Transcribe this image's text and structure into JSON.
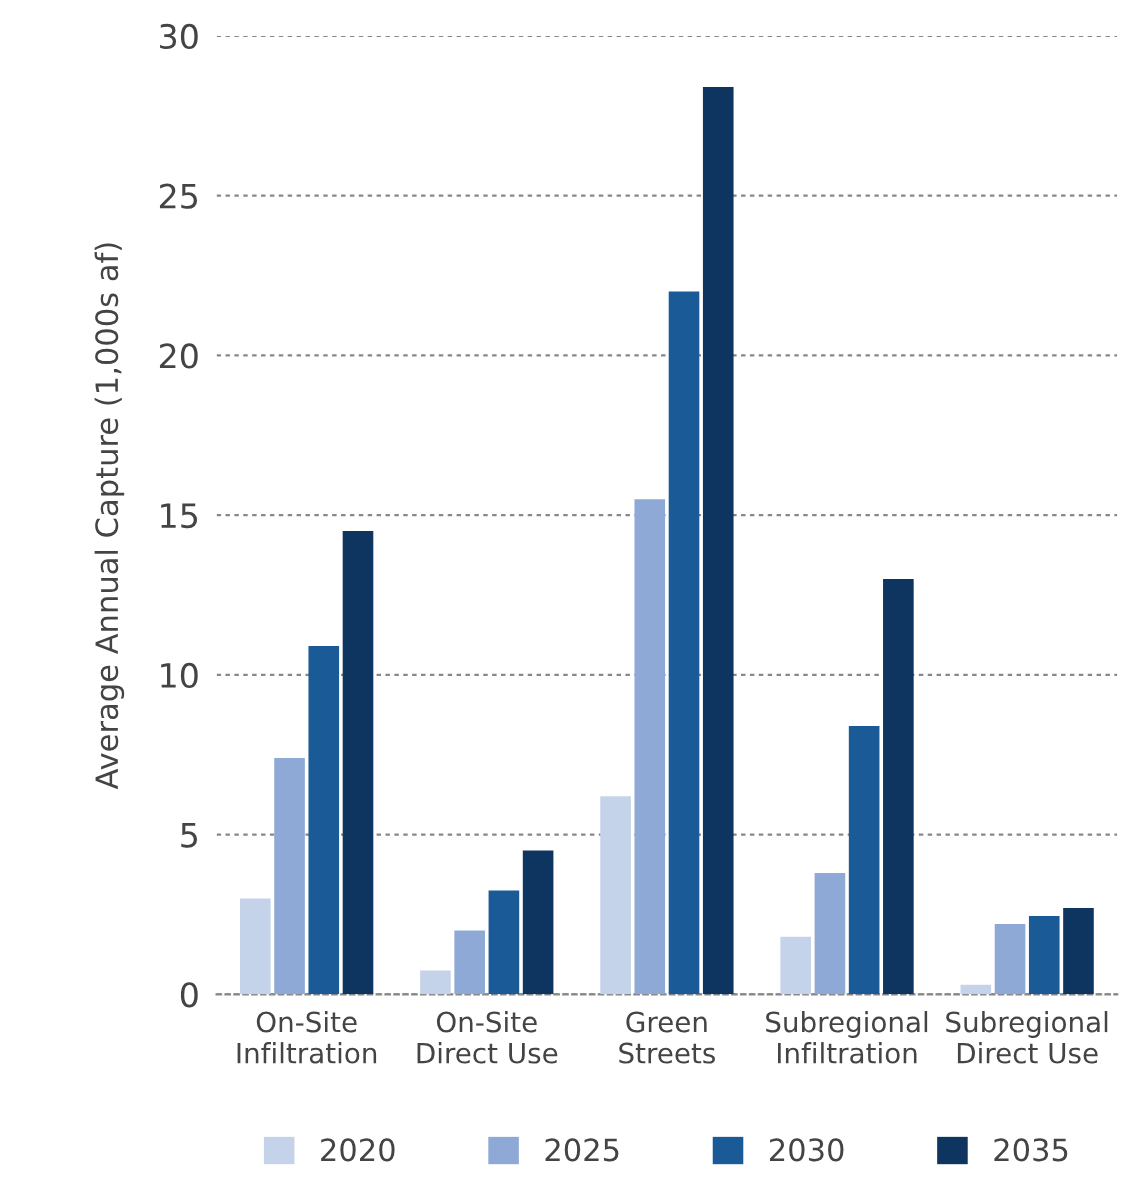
{
  "chart_data": {
    "type": "bar",
    "categories": [
      "On-Site\nInfiltration",
      "On-Site\nDirect Use",
      "Green\nStreets",
      "Subregional\nInfiltration",
      "Subregional\nDirect Use"
    ],
    "series": [
      {
        "name": "2020",
        "color": "#c5d3ea",
        "values": [
          3.0,
          0.75,
          6.2,
          1.8,
          0.3
        ]
      },
      {
        "name": "2025",
        "color": "#8fa9d6",
        "values": [
          7.4,
          2.0,
          15.5,
          3.8,
          2.2
        ]
      },
      {
        "name": "2030",
        "color": "#1a5a96",
        "values": [
          10.9,
          3.25,
          22.0,
          8.4,
          2.45
        ]
      },
      {
        "name": "2035",
        "color": "#0d3560",
        "values": [
          14.5,
          4.5,
          28.4,
          13.0,
          2.7
        ]
      }
    ],
    "ylabel": "Average Annual Capture (1,000s af)",
    "ylim": [
      0,
      30
    ],
    "yticks": [
      0,
      5,
      10,
      15,
      20,
      25,
      30
    ],
    "grid": "y",
    "legend": "bottom"
  }
}
